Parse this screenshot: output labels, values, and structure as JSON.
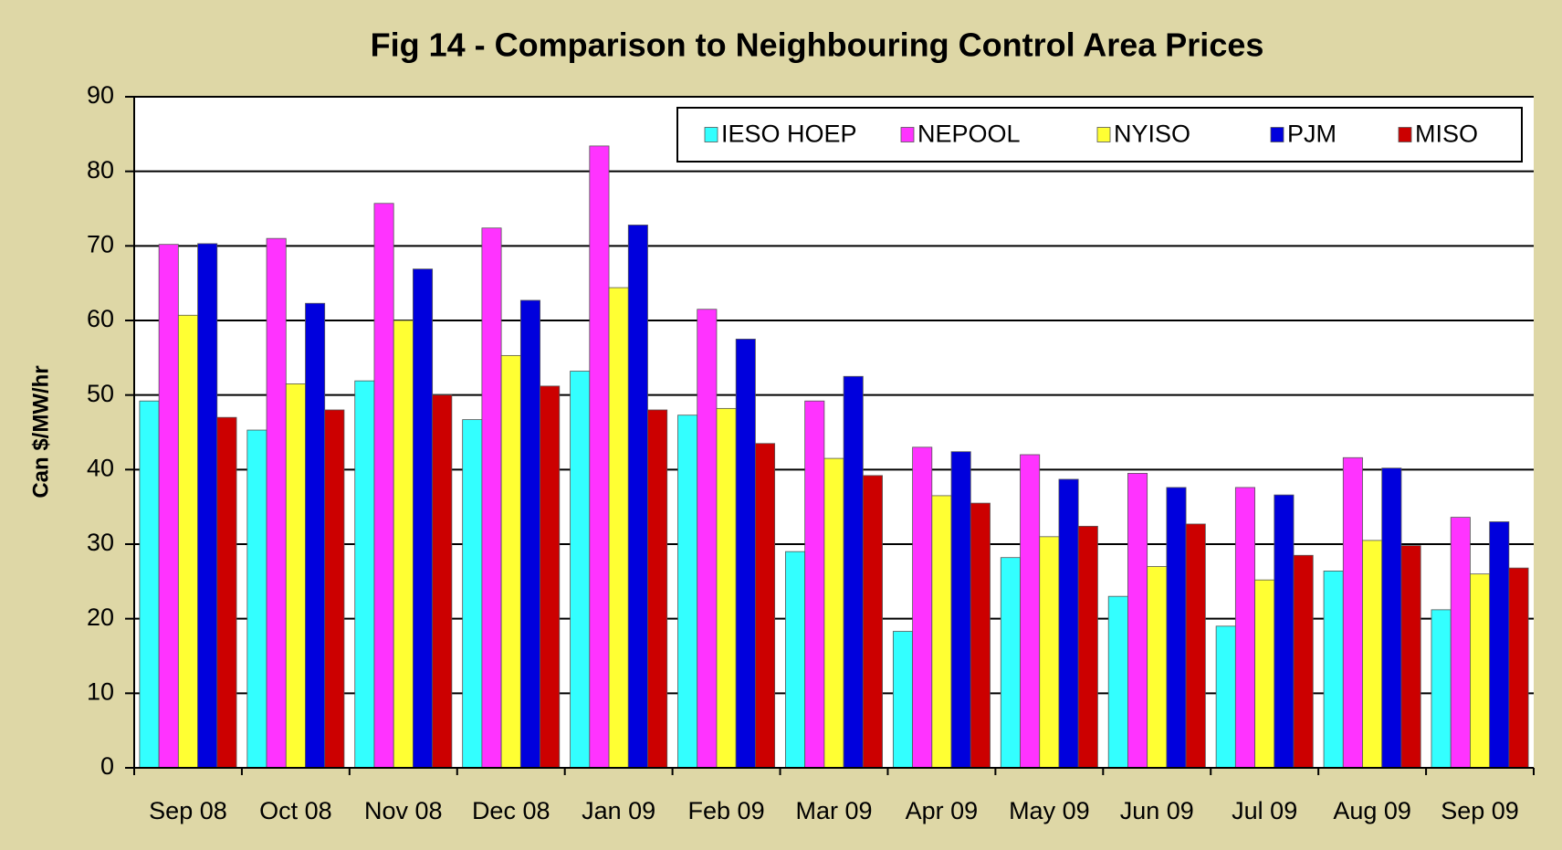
{
  "chart_data": {
    "type": "bar",
    "title": "Fig  14 - Comparison to Neighbouring Control Area Prices",
    "y_label": "Can $/MW/hr",
    "categories": [
      "Sep 08",
      "Oct 08",
      "Nov 08",
      "Dec 08",
      "Jan 09",
      "Feb 09",
      "Mar 09",
      "Apr 09",
      "May 09",
      "Jun 09",
      "Jul 09",
      "Aug 09",
      "Sep 09"
    ],
    "series": [
      {
        "name": "IESO HOEP",
        "color": "#33ffff",
        "values": [
          49.2,
          45.3,
          51.9,
          46.7,
          53.2,
          47.3,
          29,
          18.3,
          28.2,
          23,
          19,
          26.4,
          21.2
        ]
      },
      {
        "name": "NEPOOL",
        "color": "#ff33ff",
        "values": [
          70.2,
          71,
          75.7,
          72.4,
          83.4,
          61.5,
          49.2,
          43,
          42,
          39.5,
          37.6,
          41.6,
          33.6
        ]
      },
      {
        "name": "NYISO",
        "color": "#ffff33",
        "values": [
          60.7,
          51.5,
          60,
          55.3,
          64.4,
          48.2,
          41.5,
          36.5,
          31,
          27,
          25.2,
          30.5,
          26
        ]
      },
      {
        "name": "PJM",
        "color": "#0000dd",
        "values": [
          70.3,
          62.3,
          66.9,
          62.7,
          72.8,
          57.5,
          52.5,
          42.4,
          38.7,
          37.6,
          36.6,
          40.2,
          33
        ]
      },
      {
        "name": "MISO",
        "color": "#cc0000",
        "values": [
          47,
          48,
          50,
          51.2,
          48,
          43.5,
          39.2,
          35.5,
          32.4,
          32.7,
          28.5,
          29.8,
          26.8
        ]
      }
    ],
    "ylim": [
      0,
      90
    ],
    "yticks": [
      0,
      10,
      20,
      30,
      40,
      50,
      60,
      70,
      80,
      90
    ],
    "grid": true,
    "legend": "upper right"
  }
}
